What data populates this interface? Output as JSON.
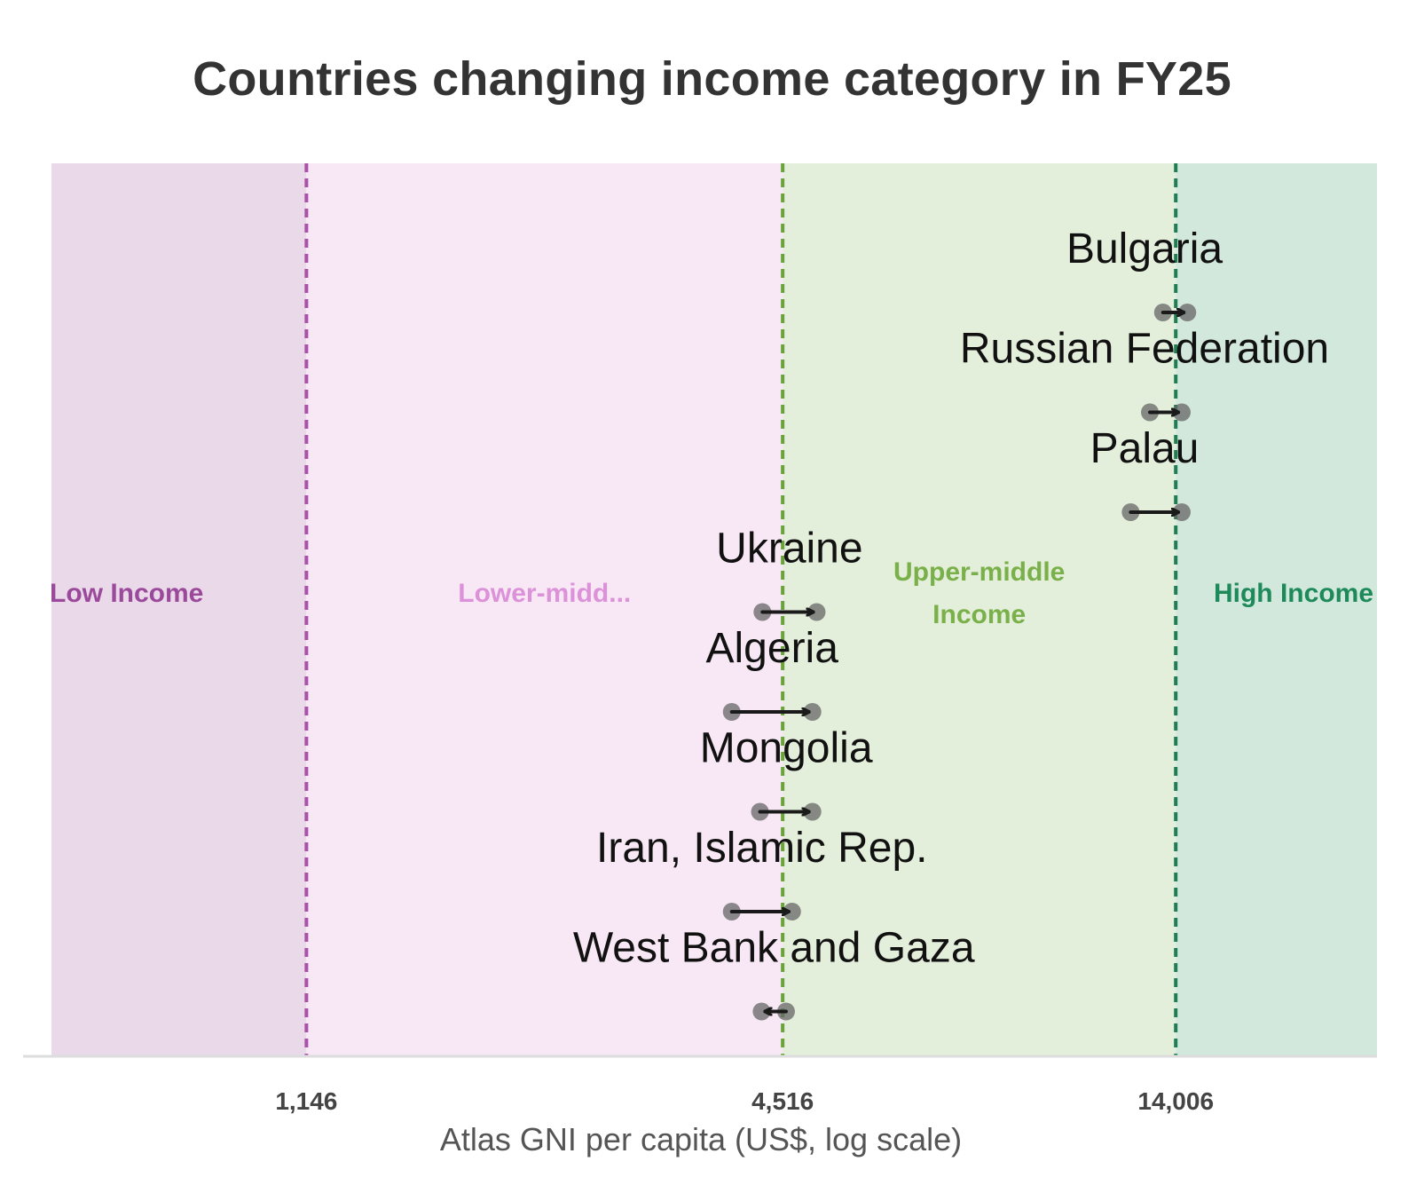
{
  "chart_data": {
    "type": "dot-arrow",
    "title": "Countries changing income category in FY25",
    "xlabel": "Atlas GNI per capita (US$, log scale)",
    "ylabel": "",
    "x_scale": "log",
    "xlim": [
      550,
      25000
    ],
    "x_ticks": [
      1146,
      4516,
      14006
    ],
    "x_tick_labels": [
      "1,146",
      "4,516",
      "14,006"
    ],
    "thresholds": [
      {
        "value": 1146,
        "color": "#a852a8"
      },
      {
        "value": 4516,
        "color": "#6aa23c"
      },
      {
        "value": 14006,
        "color": "#1f7e52"
      }
    ],
    "bands": [
      {
        "label": "Low Income",
        "from": 550,
        "to": 1146,
        "fill": "#e9d9e9",
        "text_color": "#9b4a9b"
      },
      {
        "label": "Lower-midd...",
        "from": 1146,
        "to": 4516,
        "fill": "#f8e8f5",
        "text_color": "#dc92d8"
      },
      {
        "label": "Upper-middle Income",
        "from": 4516,
        "to": 14006,
        "fill": "#e3eedb",
        "text_color": "#7ab04a"
      },
      {
        "label": "High Income",
        "from": 14006,
        "to": 25000,
        "fill": "#d2e8dd",
        "text_color": "#1e8a5a"
      }
    ],
    "series": [
      {
        "country": "Bulgaria",
        "from": 13500,
        "to": 14480
      },
      {
        "country": "Russian Federation",
        "from": 13000,
        "to": 14250
      },
      {
        "country": "Palau",
        "from": 12300,
        "to": 14250
      },
      {
        "country": "Ukraine",
        "from": 4260,
        "to": 4980
      },
      {
        "country": "Algeria",
        "from": 3900,
        "to": 4920
      },
      {
        "country": "Mongolia",
        "from": 4230,
        "to": 4920
      },
      {
        "country": "Iran, Islamic Rep.",
        "from": 3900,
        "to": 4640
      },
      {
        "country": "West Bank and Gaza",
        "from": 4560,
        "to": 4250
      }
    ]
  }
}
